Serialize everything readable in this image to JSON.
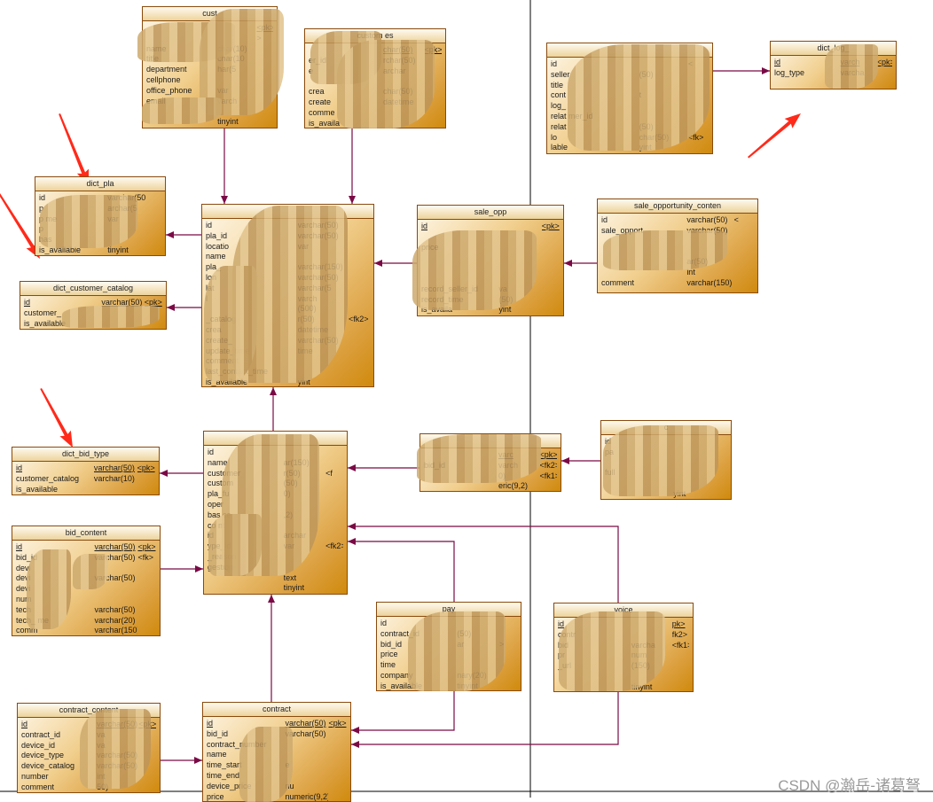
{
  "colors": {
    "link": "#7a0a45",
    "table_border": "#8a4a0c",
    "arrow_annotation": "#ff2a1a"
  },
  "tables": [
    {
      "title": "cust",
      "rows": [
        [
          "",
          "",
          "<pk>"
        ],
        [
          "",
          "",
          ">"
        ],
        [
          "name",
          "char(10)",
          ""
        ],
        [
          "title",
          "char(10",
          ""
        ],
        [
          "department",
          "har(5",
          ""
        ],
        [
          "cellphone",
          "",
          ""
        ],
        [
          "office_phone",
          "var",
          ""
        ],
        [
          "email",
          "varch",
          ""
        ],
        [
          "",
          "",
          " "
        ],
        [
          "",
          "tinyint",
          ""
        ]
      ]
    },
    {
      "title": "custom    es",
      "rows": [
        [
          "",
          "char(50)",
          "<pk>"
        ],
        [
          "er_id",
          "rchar(50)",
          ""
        ],
        [
          "e",
          "archar",
          ""
        ],
        [
          "",
          "",
          ""
        ],
        [
          "crea",
          "char(50)",
          ""
        ],
        [
          "create",
          "datetime",
          ""
        ],
        [
          "comme",
          "",
          ""
        ],
        [
          "is_availa",
          "",
          ""
        ]
      ]
    },
    {
      "title": "dict_pla",
      "rows": [
        [
          "id",
          "varchar(50)",
          ""
        ],
        [
          "p",
          "archar(5",
          ""
        ],
        [
          "p    me",
          "var",
          ""
        ],
        [
          "p",
          "",
          ""
        ],
        [
          "has",
          "",
          ""
        ],
        [
          "is_available",
          "tinyint",
          ""
        ]
      ]
    },
    {
      "title": "dict_customer_catalog",
      "rows": [
        [
          "id",
          "varchar(50)",
          "<pk>"
        ],
        [
          "customer_",
          "",
          ""
        ],
        [
          "is_available",
          "",
          ""
        ]
      ]
    },
    {
      "title": "",
      "rows": [
        [
          "id",
          "varchar(50)",
          ""
        ],
        [
          "pla_id",
          "varchar(50)",
          ""
        ],
        [
          "locatio",
          "var",
          ""
        ],
        [
          "name",
          "",
          ""
        ],
        [
          "pla_",
          "varchar(150)",
          ""
        ],
        [
          "lon",
          "varchar(50)",
          ""
        ],
        [
          "lat",
          "varchar(5",
          ""
        ],
        [
          "l",
          "varch",
          ""
        ],
        [
          "",
          "(500)",
          ""
        ],
        [
          "_catalog",
          "r(50)",
          "<fk2>"
        ],
        [
          "crea",
          "datetime",
          ""
        ],
        [
          "create_",
          "varchar(50)",
          ""
        ],
        [
          "update_time",
          "time",
          ""
        ],
        [
          "comment",
          "",
          ""
        ],
        [
          "last_contact_time",
          "",
          ""
        ],
        [
          "is_available",
          "yint",
          ""
        ]
      ]
    },
    {
      "title": "sale_opp",
      "rows": [
        [
          "id",
          "",
          "<pk>"
        ],
        [
          "",
          "",
          ""
        ],
        [
          "price",
          "",
          ""
        ],
        [
          "",
          "",
          ""
        ],
        [
          "",
          "",
          ""
        ],
        [
          "",
          "",
          ""
        ],
        [
          "record_seller_id",
          "va",
          ""
        ],
        [
          "record_time",
          "(50)",
          ""
        ],
        [
          "is_availa",
          "yint",
          ""
        ]
      ]
    },
    {
      "title": "sale_opportunity_conten",
      "rows": [
        [
          "id",
          "varchar(50)",
          "<"
        ],
        [
          "sale_opport",
          "varchar(50)",
          ""
        ],
        [
          "",
          "",
          ""
        ],
        [
          "",
          "",
          ""
        ],
        [
          "",
          "ar(50)",
          ""
        ],
        [
          "",
          "int",
          ""
        ],
        [
          "comment",
          "varchar(150)",
          ""
        ]
      ]
    },
    {
      "title": "",
      "rows": [
        [
          "id",
          "",
          "<"
        ],
        [
          "seller",
          "(50)",
          ""
        ],
        [
          "title",
          "",
          ""
        ],
        [
          "cont",
          "t",
          ""
        ],
        [
          "log_",
          "",
          ""
        ],
        [
          "relat      mer_id",
          "",
          ""
        ],
        [
          "relat",
          "(50)",
          ""
        ],
        [
          "lo",
          "char(50)",
          "<fk>"
        ],
        [
          "     lable",
          "yint",
          ""
        ]
      ]
    },
    {
      "title": "dict_log_",
      "rows": [
        [
          "id",
          "varch",
          "<pk>"
        ],
        [
          "log_type",
          "varcha",
          ""
        ]
      ]
    },
    {
      "title": "",
      "rows": [
        [
          "id",
          "",
          ""
        ],
        [
          "name",
          "ar(150)",
          ""
        ],
        [
          "customer",
          "r(50)",
          "<f"
        ],
        [
          "custom",
          "(50)",
          ""
        ],
        [
          "pla_fu",
          "0)",
          ""
        ],
        [
          "oper",
          "",
          ""
        ],
        [
          "bas    ce",
          ",2)",
          ""
        ],
        [
          "co    nt",
          "",
          ""
        ],
        [
          "    id",
          "archar",
          ""
        ],
        [
          "   ype_id",
          "var",
          "<fk2>"
        ],
        [
          "  _reason",
          "",
          ""
        ],
        [
          "  gestion",
          "",
          ""
        ],
        [
          "",
          "text",
          ""
        ],
        [
          "",
          "tinyint",
          ""
        ]
      ]
    },
    {
      "title": "dict_bid_type",
      "rows": [
        [
          "id",
          "varchar(50)",
          "<pk>"
        ],
        [
          "customer_catalog",
          "varchar(10)",
          ""
        ],
        [
          "is_available",
          "",
          ""
        ]
      ]
    },
    {
      "title": "bid_content",
      "rows": [
        [
          "id",
          "varchar(50)",
          "<pk>"
        ],
        [
          "bid_id",
          "varchar(50)",
          "<fk>"
        ],
        [
          "devi",
          "",
          ""
        ],
        [
          "devi",
          "varchar(50)",
          ""
        ],
        [
          "devi",
          "",
          ""
        ],
        [
          "num",
          "",
          ""
        ],
        [
          "tech",
          "varchar(50)",
          ""
        ],
        [
          "tech_    me",
          "varchar(20)",
          ""
        ],
        [
          "comm",
          "varchar(150)",
          ""
        ]
      ]
    },
    {
      "title": "",
      "rows": [
        [
          "",
          "varc",
          "<pk>"
        ],
        [
          "bid_id",
          "varch",
          "<fk2>"
        ],
        [
          "",
          "0)",
          "<fk1>"
        ],
        [
          "",
          "eric(9,2)",
          ""
        ]
      ]
    },
    {
      "title": "c",
      "rows": [
        [
          "id",
          "",
          ""
        ],
        [
          "pa",
          "",
          ""
        ],
        [
          "",
          "",
          ""
        ],
        [
          "  full",
          "",
          ""
        ],
        [
          "",
          "",
          ""
        ],
        [
          "",
          "yint",
          ""
        ]
      ]
    },
    {
      "title": "pay",
      "rows": [
        [
          "id",
          "",
          ""
        ],
        [
          "contract_id",
          "(50)",
          ""
        ],
        [
          "bid_id",
          "ar",
          ">"
        ],
        [
          "price",
          "",
          ""
        ],
        [
          "time",
          "",
          ""
        ],
        [
          "company",
          "nary(20)",
          ""
        ],
        [
          "is_available",
          "tinyint",
          ""
        ]
      ]
    },
    {
      "title": "voice",
      "rows": [
        [
          "id",
          "",
          "pk>"
        ],
        [
          "contr",
          "",
          "fk2>"
        ],
        [
          "bid",
          "varcha",
          "<fk1>"
        ],
        [
          "pr",
          "num",
          ""
        ],
        [
          "   _url",
          "(150)",
          ""
        ],
        [
          "",
          "",
          ""
        ],
        [
          "",
          "tinyint",
          ""
        ]
      ]
    },
    {
      "title": "contract_content",
      "rows": [
        [
          "id",
          "varchar(50)",
          "<pk>"
        ],
        [
          "contract_id",
          "va",
          ""
        ],
        [
          "device_id",
          "va",
          ""
        ],
        [
          "device_type",
          "varchar(50)",
          ""
        ],
        [
          "device_catalog",
          "varchar(50)",
          ""
        ],
        [
          "number",
          "int",
          ""
        ],
        [
          "comment",
          "50)",
          ""
        ]
      ]
    },
    {
      "title": "contract",
      "rows": [
        [
          "id",
          "varchar(50)",
          "<pk>"
        ],
        [
          "bid_id",
          "varchar(50)",
          ""
        ],
        [
          "contract_number",
          "",
          ""
        ],
        [
          "name",
          "",
          ""
        ],
        [
          "time_start",
          "e",
          ""
        ],
        [
          "time_end",
          "",
          ""
        ],
        [
          "device_price",
          "nu",
          ""
        ],
        [
          "price",
          "numeric(9,2)",
          ""
        ]
      ]
    }
  ],
  "watermark": "CSDN @瀚岳-诸葛弩"
}
